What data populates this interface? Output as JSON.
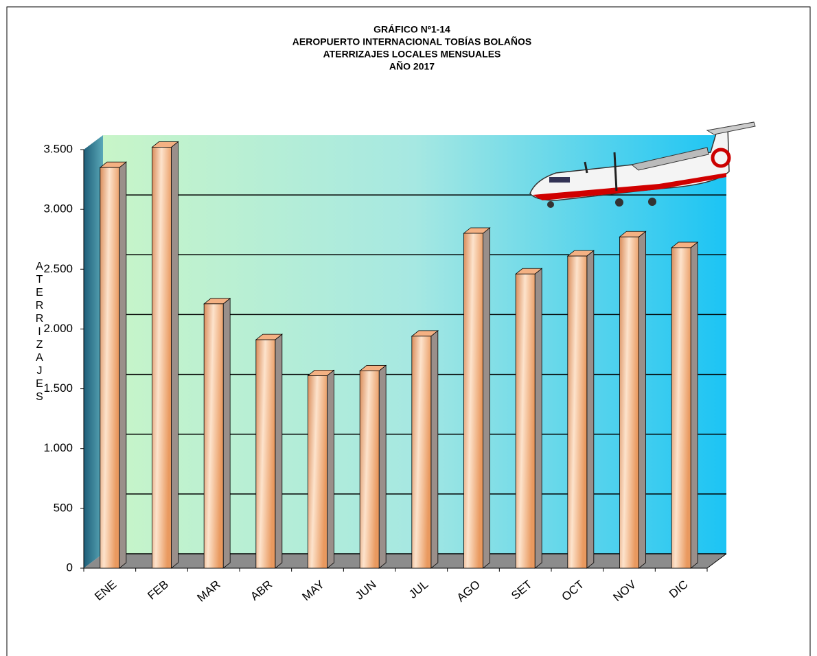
{
  "chart_data": {
    "type": "bar",
    "title": [
      "GRÁFICO Nº1-14",
      "AEROPUERTO  INTERNACIONAL  TOBÍAS BOLAÑOS",
      "ATERRIZAJES LOCALES MENSUALES",
      "AÑO 2017"
    ],
    "y_label": "ATERRIZAJES",
    "categories": [
      "ENE",
      "FEB",
      "MAR",
      "ABR",
      "MAY",
      "JUN",
      "JUL",
      "AGO",
      "SET",
      "OCT",
      "NOV",
      "DIC"
    ],
    "values": [
      3350,
      3520,
      2210,
      1910,
      1610,
      1650,
      1940,
      2800,
      2460,
      2610,
      2770,
      2680
    ],
    "color": "#f4b183",
    "ylim": [
      0,
      3500
    ],
    "yticks": [
      0,
      500,
      {
        "value": 1000,
        "label": "1.000"
      },
      {
        "value": 1500,
        "label": "1.500"
      },
      {
        "value": 2000,
        "label": "2.000"
      },
      {
        "value": 2500,
        "label": "2.500"
      },
      {
        "value": 3000,
        "label": "3.000"
      },
      {
        "value": 3500,
        "label": "3.500"
      }
    ],
    "grid": true
  }
}
